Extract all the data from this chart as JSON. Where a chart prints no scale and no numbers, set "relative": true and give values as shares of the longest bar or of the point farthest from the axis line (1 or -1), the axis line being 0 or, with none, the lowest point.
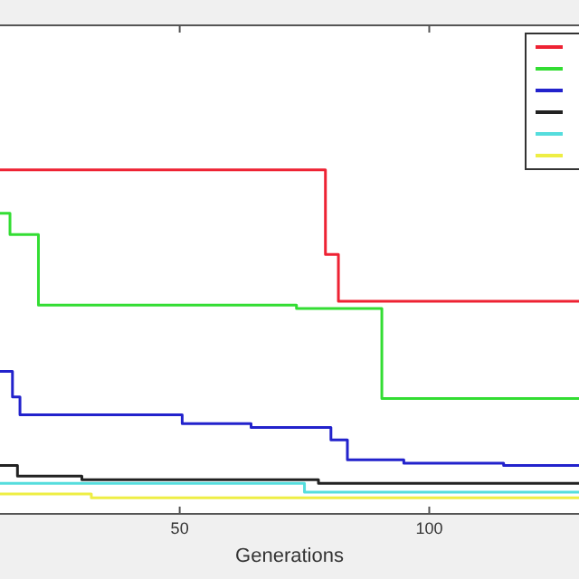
{
  "chart_data": {
    "type": "step",
    "xlabel": "Generations",
    "relative": true,
    "xlim": [
      14,
      130
    ],
    "xticks": [
      50,
      100
    ],
    "grid": false,
    "series": [
      {
        "color": "#ee2233",
        "x": [
          14,
          79.2,
          81.8,
          130
        ],
        "values": [
          1.0,
          0.754,
          0.618,
          0.618
        ]
      },
      {
        "color": "#33dd33",
        "x": [
          14,
          16,
          21.7,
          73.4,
          90.5,
          130
        ],
        "values": [
          0.874,
          0.812,
          0.607,
          0.597,
          0.335,
          0.335
        ]
      },
      {
        "color": "#2222cc",
        "x": [
          14,
          16.5,
          18,
          50.5,
          64.3,
          80.3,
          83.6,
          94.9,
          114.9,
          130
        ],
        "values": [
          0.414,
          0.34,
          0.288,
          0.262,
          0.251,
          0.215,
          0.157,
          0.147,
          0.141,
          0.141
        ]
      },
      {
        "color": "#222222",
        "x": [
          14,
          17.5,
          30.4,
          77.8,
          130
        ],
        "values": [
          0.141,
          0.11,
          0.099,
          0.089,
          0.089
        ]
      },
      {
        "color": "#55dddd",
        "x": [
          14,
          75,
          130
        ],
        "values": [
          0.089,
          0.063,
          0.063
        ]
      },
      {
        "color": "#eeee44",
        "x": [
          14,
          32.3,
          130
        ],
        "values": [
          0.058,
          0.047,
          0.047
        ]
      }
    ]
  }
}
